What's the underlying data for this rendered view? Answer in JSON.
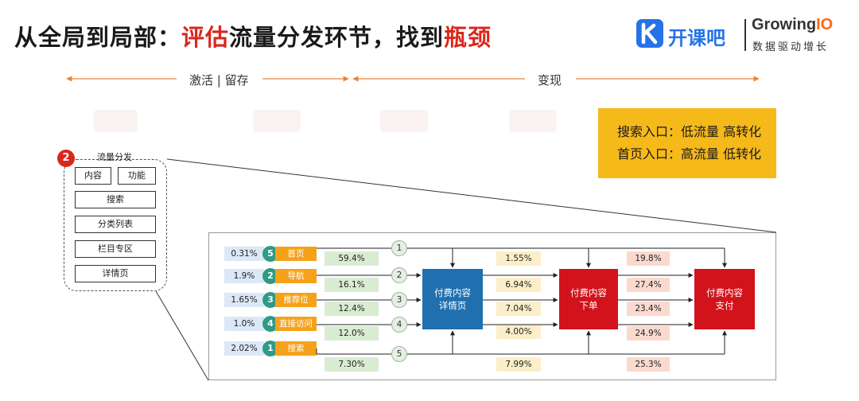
{
  "title": {
    "part1": "从全局到局部：",
    "part2": "评估",
    "part3": "流量分发环节，找到",
    "part4": "瓶颈"
  },
  "logo": {
    "brand_cn": "开课吧",
    "growing": "Growing",
    "io": "IO",
    "sub": "数据驱动增长"
  },
  "phases": {
    "left": "激活 | 留存",
    "right": "变现"
  },
  "callout": {
    "line1": "搜索入口：低流量 高转化",
    "line2": "首页入口：高流量 低转化"
  },
  "traffic_panel": {
    "badge": "2",
    "title": "流量分发",
    "content": "内容",
    "function": "功能",
    "search": "搜索",
    "category": "分类列表",
    "column": "栏目专区",
    "detail": "详情页"
  },
  "channels": [
    {
      "share": "0.31%",
      "rank": "5",
      "name": "首页",
      "to_detail": "59.4%",
      "node": "1",
      "to_order": "1.55%",
      "to_pay": "19.8%"
    },
    {
      "share": "1.9%",
      "rank": "2",
      "name": "导航",
      "to_detail": "16.1%",
      "node": "2",
      "to_order": "6.94%",
      "to_pay": "27.4%"
    },
    {
      "share": "1.65%",
      "rank": "3",
      "name": "推荐位",
      "to_detail": "12.4%",
      "node": "3",
      "to_order": "7.04%",
      "to_pay": "23.4%"
    },
    {
      "share": "1.0%",
      "rank": "4",
      "name": "直接访问",
      "to_detail": "12.0%",
      "node": "4",
      "to_order": "4.00%",
      "to_pay": "24.9%"
    },
    {
      "share": "2.02%",
      "rank": "1",
      "name": "搜索",
      "to_detail": "7.30%",
      "node": "5",
      "to_order": "7.99%",
      "to_pay": "25.3%"
    }
  ],
  "stages": {
    "detail_l1": "付费内容",
    "detail_l2": "详情页",
    "order_l1": "付费内容",
    "order_l2": "下单",
    "pay_l1": "付费内容",
    "pay_l2": "支付"
  },
  "colors": {
    "accent_red": "#d9271c",
    "brand_blue": "#2673e8",
    "detail_blue": "#2070b0",
    "stage_red": "#d3131b",
    "channel_orange": "#f5a21b",
    "rank_teal": "#2f9b86",
    "callout_yellow": "#f5b91a"
  }
}
